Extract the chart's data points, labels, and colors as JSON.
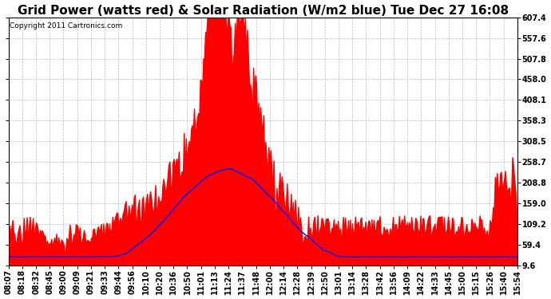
{
  "title": "Grid Power (watts red) & Solar Radiation (W/m2 blue) Tue Dec 27 16:08",
  "copyright": "Copyright 2011 Cartronics.com",
  "ylim": [
    9.6,
    607.4
  ],
  "yticks": [
    9.6,
    59.4,
    109.2,
    159.0,
    208.8,
    258.7,
    308.5,
    358.3,
    408.1,
    458.0,
    507.8,
    557.6,
    607.4
  ],
  "xtick_labels": [
    "08:07",
    "08:18",
    "08:32",
    "08:45",
    "09:00",
    "09:09",
    "09:21",
    "09:33",
    "09:44",
    "09:56",
    "10:10",
    "10:20",
    "10:36",
    "10:50",
    "11:01",
    "11:13",
    "11:24",
    "11:37",
    "11:48",
    "12:00",
    "12:14",
    "12:28",
    "12:39",
    "12:50",
    "13:01",
    "13:14",
    "13:28",
    "13:42",
    "13:56",
    "14:09",
    "14:22",
    "14:33",
    "14:45",
    "15:00",
    "15:15",
    "15:26",
    "15:40",
    "15:54"
  ],
  "bg_color": "#ffffff",
  "plot_bg_color": "#ffffff",
  "grid_color": "#bbbbbb",
  "title_fontsize": 11,
  "tick_fontsize": 7.0,
  "baseline": 9.6
}
